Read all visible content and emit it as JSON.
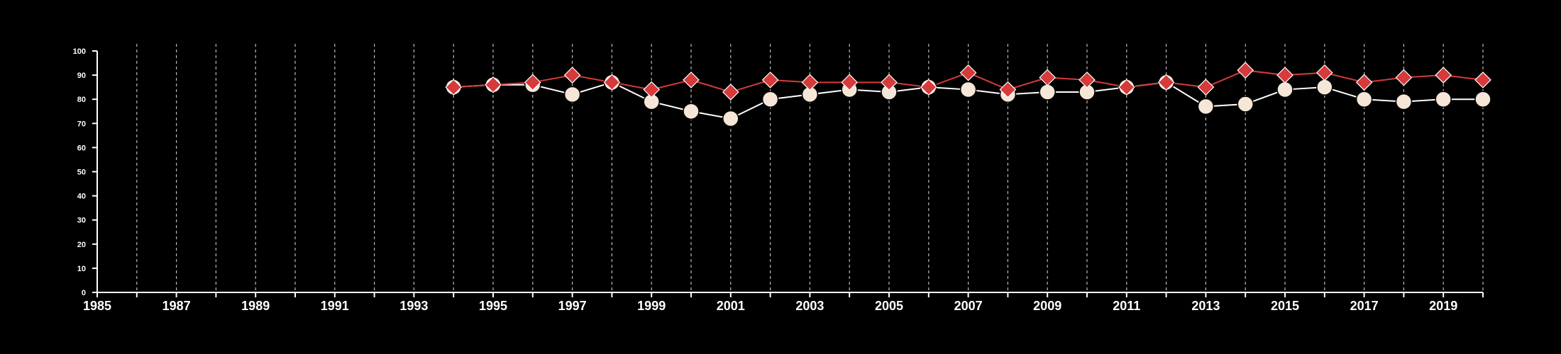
{
  "chart_data": {
    "type": "line",
    "title": "",
    "xlabel": "",
    "ylabel": "",
    "xlim": [
      1985,
      2020
    ],
    "ylim": [
      0,
      100
    ],
    "x_ticks": [
      1985,
      1987,
      1989,
      1991,
      1993,
      1995,
      1997,
      1999,
      2001,
      2003,
      2005,
      2007,
      2009,
      2011,
      2013,
      2015,
      2017,
      2019
    ],
    "y_ticks": [
      0,
      10,
      20,
      30,
      40,
      50,
      60,
      70,
      80,
      90,
      100
    ],
    "x_tick_labels": [
      "1985",
      "1987",
      "1989",
      "1991",
      "1993",
      "1995",
      "1997",
      "1999",
      "2001",
      "2003",
      "2005",
      "2007",
      "2009",
      "2011",
      "2013",
      "2015",
      "2017",
      "2019"
    ],
    "y_tick_labels": [
      "0",
      "10",
      "20",
      "30",
      "40",
      "50",
      "60",
      "70",
      "80",
      "90",
      "100"
    ],
    "vertical_gridlines": "dashed, yearly 1986-2020",
    "colors": {
      "background": "#000000",
      "axis": "#ffffff",
      "grid": "#bbbbbb"
    },
    "series": [
      {
        "marker": "circle",
        "color": "#f5e6d8",
        "line_color": "#ffffff",
        "x": [
          1994,
          1995,
          1996,
          1997,
          1998,
          1999,
          2000,
          2001,
          2002,
          2003,
          2004,
          2005,
          2006,
          2007,
          2008,
          2009,
          2010,
          2011,
          2012,
          2013,
          2014,
          2015,
          2016,
          2017,
          2018,
          2019,
          2020
        ],
        "y": [
          85,
          86,
          86,
          82,
          87,
          79,
          75,
          72,
          80,
          82,
          84,
          83,
          85,
          84,
          82,
          83,
          83,
          85,
          87,
          77,
          78,
          84,
          85,
          80,
          79,
          80,
          80
        ]
      },
      {
        "marker": "diamond",
        "color": "#d63a3a",
        "line_color": "#d63a3a",
        "x": [
          1994,
          1995,
          1996,
          1997,
          1998,
          1999,
          2000,
          2001,
          2002,
          2003,
          2004,
          2005,
          2006,
          2007,
          2008,
          2009,
          2010,
          2011,
          2012,
          2013,
          2014,
          2015,
          2016,
          2017,
          2018,
          2019,
          2020
        ],
        "y": [
          85,
          86,
          87,
          90,
          87,
          84,
          88,
          83,
          88,
          87,
          87,
          87,
          85,
          91,
          84,
          89,
          88,
          85,
          87,
          85,
          92,
          90,
          91,
          87,
          89,
          90,
          88
        ]
      }
    ]
  }
}
